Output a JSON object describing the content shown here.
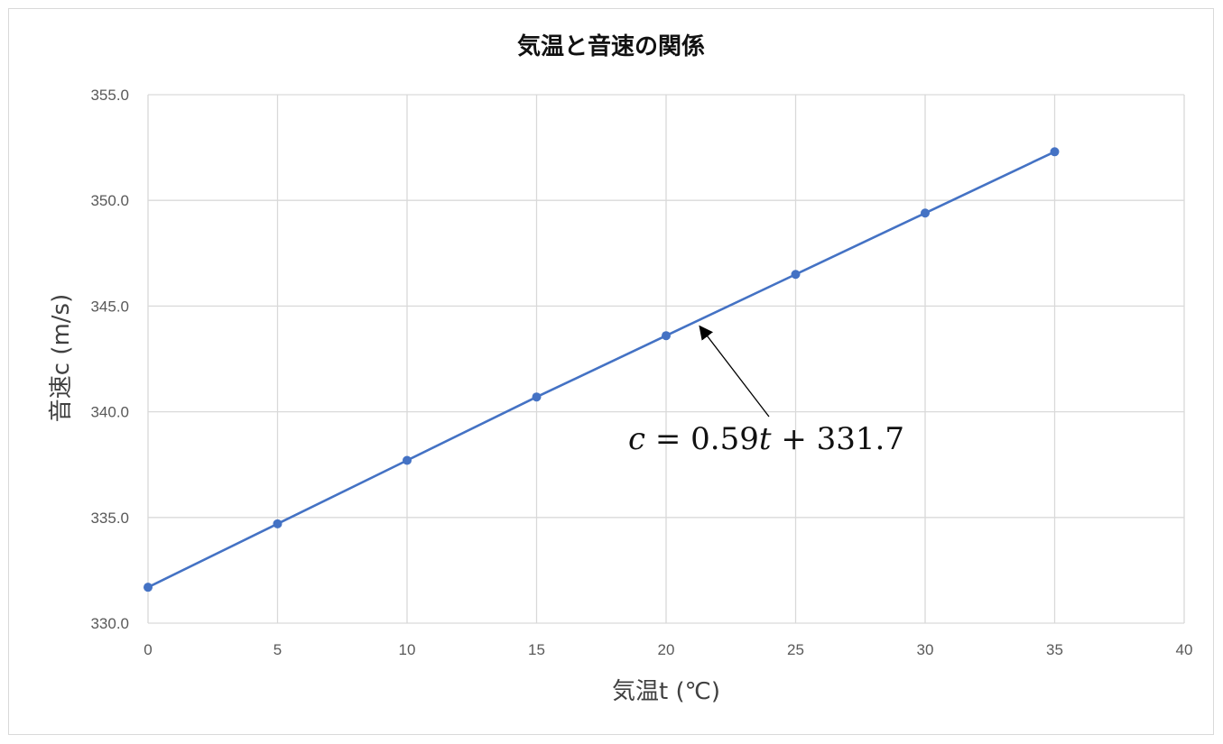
{
  "chart_data": {
    "type": "line",
    "title": "気温と音速の関係",
    "xlabel": "気温t (℃)",
    "ylabel": "音速c (m/s)",
    "xlim": [
      0,
      40
    ],
    "ylim": [
      330.0,
      355.0
    ],
    "x_ticks": [
      "0",
      "5",
      "10",
      "15",
      "20",
      "25",
      "30",
      "35",
      "40"
    ],
    "y_ticks": [
      "330.0",
      "335.0",
      "340.0",
      "345.0",
      "350.0",
      "355.0"
    ],
    "grid": true,
    "legend": "none",
    "series": [
      {
        "x": [
          0,
          5,
          10,
          15,
          20,
          25,
          30,
          35
        ],
        "y": [
          331.7,
          334.7,
          337.7,
          340.7,
          343.6,
          346.5,
          349.4,
          352.3
        ],
        "color": "#4472c4",
        "marker": "circle"
      }
    ],
    "annotation": {
      "text_parts": [
        {
          "text": "c",
          "italic": true
        },
        {
          "text": " = 0.59",
          "italic": false
        },
        {
          "text": "t",
          "italic": true
        },
        {
          "text": " + 331.7",
          "italic": false
        }
      ],
      "arrow_target": {
        "x": 21.3,
        "y": 344.3
      }
    }
  }
}
